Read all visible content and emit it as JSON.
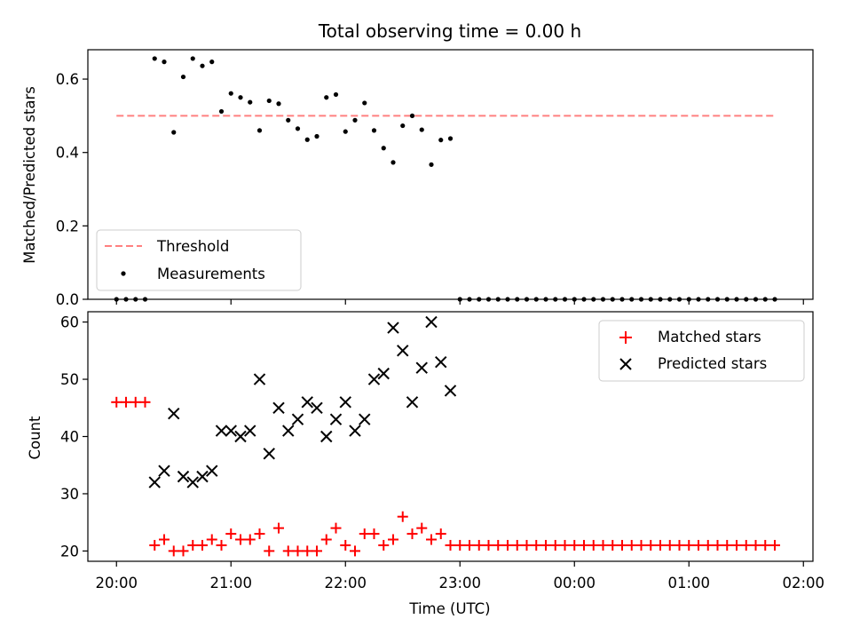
{
  "chart_data": [
    {
      "type": "scatter",
      "title": "Total observing time = 0.00 h",
      "xlabel": "",
      "ylabel": "Matched/Predicted stars",
      "xlim": [
        "19:45",
        "02:05"
      ],
      "ylim": [
        0,
        0.68
      ],
      "yticks": [
        0.0,
        0.2,
        0.4,
        0.6
      ],
      "ytick_labels": [
        "0.0",
        "0.2",
        "0.4",
        "0.6"
      ],
      "legend_position": "lower-left",
      "threshold": {
        "name": "Threshold",
        "value": 0.5,
        "x_start": "20:00",
        "x_end": "01:45",
        "color": "#ff8080",
        "style": "dashed"
      },
      "series": [
        {
          "name": "Measurements",
          "color": "#000000",
          "marker": "dot",
          "points": [
            {
              "x": "20:00",
              "y": 0
            },
            {
              "x": "20:05",
              "y": 0
            },
            {
              "x": "20:10",
              "y": 0
            },
            {
              "x": "20:15",
              "y": 0
            },
            {
              "x": "20:20",
              "y": 0.656
            },
            {
              "x": "20:25",
              "y": 0.647
            },
            {
              "x": "20:30",
              "y": 0.455
            },
            {
              "x": "20:35",
              "y": 0.606
            },
            {
              "x": "20:40",
              "y": 0.656
            },
            {
              "x": "20:45",
              "y": 0.636
            },
            {
              "x": "20:50",
              "y": 0.647
            },
            {
              "x": "20:55",
              "y": 0.512
            },
            {
              "x": "21:00",
              "y": 0.561
            },
            {
              "x": "21:05",
              "y": 0.55
            },
            {
              "x": "21:10",
              "y": 0.537
            },
            {
              "x": "21:15",
              "y": 0.46
            },
            {
              "x": "21:20",
              "y": 0.541
            },
            {
              "x": "21:25",
              "y": 0.533
            },
            {
              "x": "21:30",
              "y": 0.488
            },
            {
              "x": "21:35",
              "y": 0.465
            },
            {
              "x": "21:40",
              "y": 0.435
            },
            {
              "x": "21:45",
              "y": 0.444
            },
            {
              "x": "21:50",
              "y": 0.55
            },
            {
              "x": "21:55",
              "y": 0.558
            },
            {
              "x": "22:00",
              "y": 0.457
            },
            {
              "x": "22:05",
              "y": 0.488
            },
            {
              "x": "22:10",
              "y": 0.535
            },
            {
              "x": "22:15",
              "y": 0.46
            },
            {
              "x": "22:20",
              "y": 0.412
            },
            {
              "x": "22:25",
              "y": 0.373
            },
            {
              "x": "22:30",
              "y": 0.473
            },
            {
              "x": "22:35",
              "y": 0.5
            },
            {
              "x": "22:40",
              "y": 0.462
            },
            {
              "x": "22:45",
              "y": 0.367
            },
            {
              "x": "22:50",
              "y": 0.434
            },
            {
              "x": "22:55",
              "y": 0.438
            },
            {
              "x": "23:00",
              "y": 0
            },
            {
              "x": "23:05",
              "y": 0
            },
            {
              "x": "23:10",
              "y": 0
            },
            {
              "x": "23:15",
              "y": 0
            },
            {
              "x": "23:20",
              "y": 0
            },
            {
              "x": "23:25",
              "y": 0
            },
            {
              "x": "23:30",
              "y": 0
            },
            {
              "x": "23:35",
              "y": 0
            },
            {
              "x": "23:40",
              "y": 0
            },
            {
              "x": "23:45",
              "y": 0
            },
            {
              "x": "23:50",
              "y": 0
            },
            {
              "x": "23:55",
              "y": 0
            },
            {
              "x": "00:00",
              "y": 0
            },
            {
              "x": "00:05",
              "y": 0
            },
            {
              "x": "00:10",
              "y": 0
            },
            {
              "x": "00:15",
              "y": 0
            },
            {
              "x": "00:20",
              "y": 0
            },
            {
              "x": "00:25",
              "y": 0
            },
            {
              "x": "00:30",
              "y": 0
            },
            {
              "x": "00:35",
              "y": 0
            },
            {
              "x": "00:40",
              "y": 0
            },
            {
              "x": "00:45",
              "y": 0
            },
            {
              "x": "00:50",
              "y": 0
            },
            {
              "x": "00:55",
              "y": 0
            },
            {
              "x": "01:00",
              "y": 0
            },
            {
              "x": "01:05",
              "y": 0
            },
            {
              "x": "01:10",
              "y": 0
            },
            {
              "x": "01:15",
              "y": 0
            },
            {
              "x": "01:20",
              "y": 0
            },
            {
              "x": "01:25",
              "y": 0
            },
            {
              "x": "01:30",
              "y": 0
            },
            {
              "x": "01:35",
              "y": 0
            },
            {
              "x": "01:40",
              "y": 0
            },
            {
              "x": "01:45",
              "y": 0
            }
          ]
        }
      ]
    },
    {
      "type": "scatter",
      "title": "",
      "xlabel": "Time (UTC)",
      "ylabel": "Count",
      "xlim": [
        "19:45",
        "02:05"
      ],
      "ylim": [
        18.2,
        61.8
      ],
      "yticks": [
        20,
        30,
        40,
        50,
        60
      ],
      "ytick_labels": [
        "20",
        "30",
        "40",
        "50",
        "60"
      ],
      "xticks": [
        "20:00",
        "21:00",
        "22:00",
        "23:00",
        "00:00",
        "01:00",
        "02:00"
      ],
      "legend_position": "upper-right",
      "series": [
        {
          "name": "Matched stars",
          "color": "#ff0000",
          "marker": "plus",
          "points": [
            {
              "x": "20:00",
              "y": 46
            },
            {
              "x": "20:05",
              "y": 46
            },
            {
              "x": "20:10",
              "y": 46
            },
            {
              "x": "20:15",
              "y": 46
            },
            {
              "x": "20:20",
              "y": 21
            },
            {
              "x": "20:25",
              "y": 22
            },
            {
              "x": "20:30",
              "y": 20
            },
            {
              "x": "20:35",
              "y": 20
            },
            {
              "x": "20:40",
              "y": 21
            },
            {
              "x": "20:45",
              "y": 21
            },
            {
              "x": "20:50",
              "y": 22
            },
            {
              "x": "20:55",
              "y": 21
            },
            {
              "x": "21:00",
              "y": 23
            },
            {
              "x": "21:05",
              "y": 22
            },
            {
              "x": "21:10",
              "y": 22
            },
            {
              "x": "21:15",
              "y": 23
            },
            {
              "x": "21:20",
              "y": 20
            },
            {
              "x": "21:25",
              "y": 24
            },
            {
              "x": "21:30",
              "y": 20
            },
            {
              "x": "21:35",
              "y": 20
            },
            {
              "x": "21:40",
              "y": 20
            },
            {
              "x": "21:45",
              "y": 20
            },
            {
              "x": "21:50",
              "y": 22
            },
            {
              "x": "21:55",
              "y": 24
            },
            {
              "x": "22:00",
              "y": 21
            },
            {
              "x": "22:05",
              "y": 20
            },
            {
              "x": "22:10",
              "y": 23
            },
            {
              "x": "22:15",
              "y": 23
            },
            {
              "x": "22:20",
              "y": 21
            },
            {
              "x": "22:25",
              "y": 22
            },
            {
              "x": "22:30",
              "y": 26
            },
            {
              "x": "22:35",
              "y": 23
            },
            {
              "x": "22:40",
              "y": 24
            },
            {
              "x": "22:45",
              "y": 22
            },
            {
              "x": "22:50",
              "y": 23
            },
            {
              "x": "22:55",
              "y": 21
            },
            {
              "x": "23:00",
              "y": 21
            },
            {
              "x": "23:05",
              "y": 21
            },
            {
              "x": "23:10",
              "y": 21
            },
            {
              "x": "23:15",
              "y": 21
            },
            {
              "x": "23:20",
              "y": 21
            },
            {
              "x": "23:25",
              "y": 21
            },
            {
              "x": "23:30",
              "y": 21
            },
            {
              "x": "23:35",
              "y": 21
            },
            {
              "x": "23:40",
              "y": 21
            },
            {
              "x": "23:45",
              "y": 21
            },
            {
              "x": "23:50",
              "y": 21
            },
            {
              "x": "23:55",
              "y": 21
            },
            {
              "x": "00:00",
              "y": 21
            },
            {
              "x": "00:05",
              "y": 21
            },
            {
              "x": "00:10",
              "y": 21
            },
            {
              "x": "00:15",
              "y": 21
            },
            {
              "x": "00:20",
              "y": 21
            },
            {
              "x": "00:25",
              "y": 21
            },
            {
              "x": "00:30",
              "y": 21
            },
            {
              "x": "00:35",
              "y": 21
            },
            {
              "x": "00:40",
              "y": 21
            },
            {
              "x": "00:45",
              "y": 21
            },
            {
              "x": "00:50",
              "y": 21
            },
            {
              "x": "00:55",
              "y": 21
            },
            {
              "x": "01:00",
              "y": 21
            },
            {
              "x": "01:05",
              "y": 21
            },
            {
              "x": "01:10",
              "y": 21
            },
            {
              "x": "01:15",
              "y": 21
            },
            {
              "x": "01:20",
              "y": 21
            },
            {
              "x": "01:25",
              "y": 21
            },
            {
              "x": "01:30",
              "y": 21
            },
            {
              "x": "01:35",
              "y": 21
            },
            {
              "x": "01:40",
              "y": 21
            },
            {
              "x": "01:45",
              "y": 21
            }
          ]
        },
        {
          "name": "Predicted stars",
          "color": "#000000",
          "marker": "x",
          "points": [
            {
              "x": "20:20",
              "y": 32
            },
            {
              "x": "20:25",
              "y": 34
            },
            {
              "x": "20:30",
              "y": 44
            },
            {
              "x": "20:35",
              "y": 33
            },
            {
              "x": "20:40",
              "y": 32
            },
            {
              "x": "20:45",
              "y": 33
            },
            {
              "x": "20:50",
              "y": 34
            },
            {
              "x": "20:55",
              "y": 41
            },
            {
              "x": "21:00",
              "y": 41
            },
            {
              "x": "21:05",
              "y": 40
            },
            {
              "x": "21:10",
              "y": 41
            },
            {
              "x": "21:15",
              "y": 50
            },
            {
              "x": "21:20",
              "y": 37
            },
            {
              "x": "21:25",
              "y": 45
            },
            {
              "x": "21:30",
              "y": 41
            },
            {
              "x": "21:35",
              "y": 43
            },
            {
              "x": "21:40",
              "y": 46
            },
            {
              "x": "21:45",
              "y": 45
            },
            {
              "x": "21:50",
              "y": 40
            },
            {
              "x": "21:55",
              "y": 43
            },
            {
              "x": "22:00",
              "y": 46
            },
            {
              "x": "22:05",
              "y": 41
            },
            {
              "x": "22:10",
              "y": 43
            },
            {
              "x": "22:15",
              "y": 50
            },
            {
              "x": "22:20",
              "y": 51
            },
            {
              "x": "22:25",
              "y": 59
            },
            {
              "x": "22:30",
              "y": 55
            },
            {
              "x": "22:35",
              "y": 46
            },
            {
              "x": "22:40",
              "y": 52
            },
            {
              "x": "22:45",
              "y": 60
            },
            {
              "x": "22:50",
              "y": 53
            },
            {
              "x": "22:55",
              "y": 48
            }
          ]
        }
      ]
    }
  ]
}
